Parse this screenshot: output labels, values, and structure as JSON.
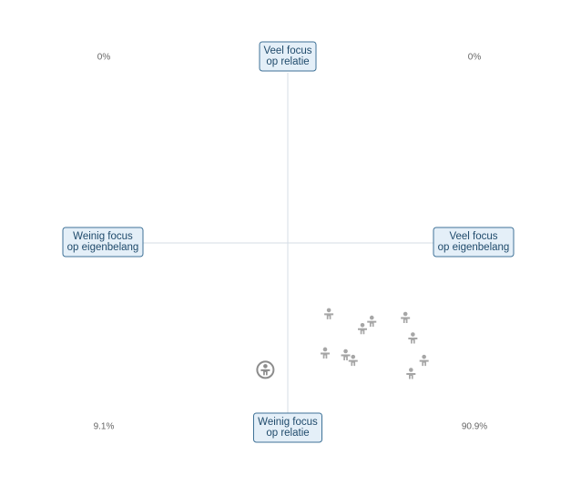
{
  "chart_data": {
    "type": "scatter",
    "axis_labels": {
      "top": [
        "Veel focus",
        "op relatie"
      ],
      "bottom": [
        "Weinig focus",
        "op relatie"
      ],
      "left": [
        "Weinig focus",
        "op eigenbelang"
      ],
      "right": [
        "Veel focus",
        "op eigenbelang"
      ]
    },
    "quadrant_values": [
      0,
      0,
      9.1,
      90.9
    ],
    "quadrant_value_labels": [
      "0%",
      "0%",
      "9.1%",
      "90.9%"
    ],
    "xlim": [
      -1,
      1
    ],
    "ylim": [
      -1,
      1
    ],
    "series": [
      {
        "color": "#a6a6a6",
        "marker": "person",
        "x": [
          0.22,
          0.45,
          0.4,
          0.63,
          0.67,
          0.2,
          0.31,
          0.35,
          0.73,
          0.66
        ],
        "values": [
          -0.38,
          -0.42,
          -0.46,
          -0.4,
          -0.51,
          -0.59,
          -0.6,
          -0.63,
          -0.63,
          -0.7
        ]
      },
      {
        "color": "#8c8c8c",
        "marker": "circled-person",
        "x": [
          -0.12
        ],
        "values": [
          -0.68
        ]
      }
    ]
  }
}
